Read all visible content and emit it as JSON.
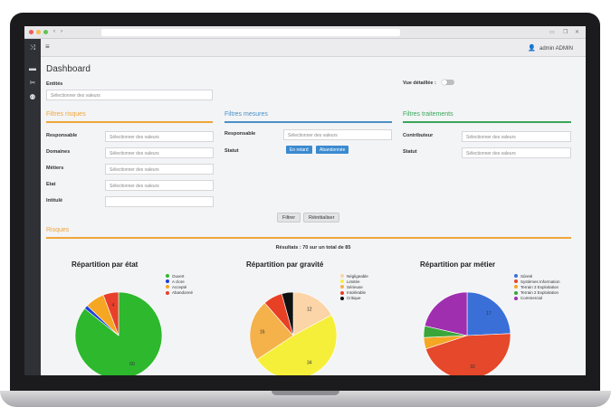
{
  "header": {
    "menu_icon": "hamburger-icon",
    "user_label": "admin ADMIN"
  },
  "sidebar": {
    "icons": [
      "shuffle-icon",
      "folder-icon",
      "tools-icon",
      "users-icon"
    ]
  },
  "page": {
    "title": "Dashboard"
  },
  "entites": {
    "label": "Entités",
    "placeholder": "Sélectionner des valeurs"
  },
  "detail_toggle": {
    "label": "Vue détaillée :"
  },
  "filtres_risques": {
    "title": "Filtres risques",
    "fields": [
      {
        "label": "Responsable",
        "placeholder": "Sélectionner des valeurs"
      },
      {
        "label": "Domaines",
        "placeholder": "Sélectionner des valeurs"
      },
      {
        "label": "Métiers",
        "placeholder": "Sélectionner des valeurs"
      },
      {
        "label": "Etat",
        "placeholder": "Sélectionner des valeurs"
      },
      {
        "label": "Intitulé",
        "placeholder": ""
      }
    ]
  },
  "filtres_mesures": {
    "title": "Filtres mesures",
    "responsable": {
      "label": "Responsable",
      "placeholder": "Sélectionner des valeurs"
    },
    "statut": {
      "label": "Statut",
      "tags": [
        "En retard",
        "Abandonnée"
      ]
    }
  },
  "filtres_traitements": {
    "title": "Filtres traitements",
    "contributeur": {
      "label": "Contributeur",
      "placeholder": "Sélectionner des valeurs"
    },
    "statut": {
      "label": "Statut",
      "placeholder": "Sélectionner des valeurs"
    }
  },
  "actions": {
    "filter": "Filtrer",
    "reset": "Réinitialiser"
  },
  "risques": {
    "title": "Risques",
    "results": "Résultats : 70 sur un total de 85"
  },
  "colors": {
    "orange": "#f0a53a",
    "blue": "#4a90c6",
    "green": "#3aa65a",
    "sidebar": "#2f3136"
  },
  "chart_data": [
    {
      "type": "pie",
      "title": "Répartition par état",
      "legend": [
        "Ouvert",
        "A clore",
        "Accepté",
        "Abandonné"
      ],
      "colors": [
        "#2db82d",
        "#1f3fd8",
        "#f5a623",
        "#e8402a"
      ],
      "values": [
        60,
        1,
        5,
        4
      ],
      "data_labels": [
        "60",
        "",
        "",
        "4"
      ]
    },
    {
      "type": "pie",
      "title": "Répartition par gravité",
      "legend": [
        "Négligeable",
        "Limitée",
        "Sérieuse",
        "Intolérable",
        "Critique"
      ],
      "colors": [
        "#fbd4a8",
        "#f5ef3a",
        "#f5b14a",
        "#e84024",
        "#111111"
      ],
      "values": [
        12,
        34,
        16,
        5,
        3
      ],
      "data_labels": [
        "12",
        "34",
        "16",
        "",
        ""
      ]
    },
    {
      "type": "pie",
      "title": "Répartition par métier",
      "legend": [
        "Sûreté",
        "Systèmes Information",
        "Terrain 3 Exploitation",
        "Terrain 2 Exploitation",
        "Commercial"
      ],
      "colors": [
        "#3a6fd8",
        "#e5482a",
        "#f5a623",
        "#3aa63a",
        "#a02fb0"
      ],
      "values": [
        17,
        32,
        3,
        3,
        15
      ],
      "data_labels": [
        "17",
        "32",
        "",
        "",
        ""
      ]
    }
  ]
}
